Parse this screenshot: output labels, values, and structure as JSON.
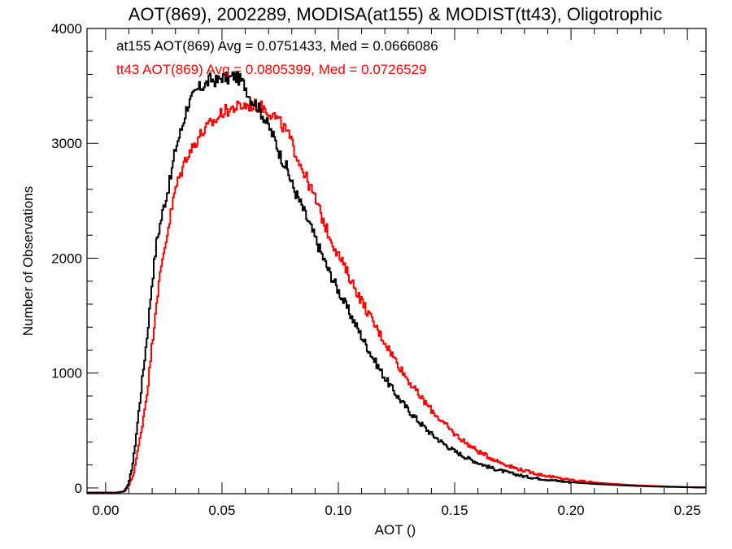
{
  "chart_data": {
    "type": "line",
    "title": "AOT(869), 2002289, MODISA(at155) & MODIST(tt43), Oligotrophic",
    "xlabel": "AOT ()",
    "ylabel": "Number of Observations",
    "xlim": [
      -0.008,
      0.258
    ],
    "ylim": [
      -50,
      4000
    ],
    "x_ticks": [
      0.0,
      0.05,
      0.1,
      0.15,
      0.2,
      0.25
    ],
    "x_tick_labels": [
      "0.00",
      "0.05",
      "0.10",
      "0.15",
      "0.20",
      "0.25"
    ],
    "y_ticks": [
      0,
      1000,
      2000,
      3000,
      4000
    ],
    "y_tick_labels": [
      "0",
      "1000",
      "2000",
      "3000",
      "4000"
    ],
    "grid": false,
    "step": "histogram",
    "annotations": [
      {
        "text": "at155 AOT(869) Avg = 0.0751433, Med = 0.0666086",
        "color": "#000000"
      },
      {
        "text": "tt43 AOT(869) Avg = 0.0805399, Med = 0.0726529",
        "color": "#ff0000"
      }
    ],
    "x": [
      -0.008,
      0.0,
      0.005,
      0.008,
      0.01,
      0.012,
      0.015,
      0.018,
      0.02,
      0.022,
      0.025,
      0.028,
      0.03,
      0.033,
      0.035,
      0.038,
      0.04,
      0.043,
      0.045,
      0.048,
      0.05,
      0.053,
      0.055,
      0.058,
      0.06,
      0.062,
      0.065,
      0.068,
      0.07,
      0.073,
      0.075,
      0.078,
      0.08,
      0.085,
      0.09,
      0.095,
      0.1,
      0.105,
      0.11,
      0.115,
      0.12,
      0.125,
      0.13,
      0.135,
      0.14,
      0.145,
      0.15,
      0.155,
      0.16,
      0.165,
      0.17,
      0.175,
      0.18,
      0.185,
      0.19,
      0.195,
      0.2,
      0.205,
      0.21,
      0.215,
      0.22,
      0.225,
      0.23,
      0.235,
      0.24,
      0.245,
      0.25,
      0.258
    ],
    "series": [
      {
        "name": "at155",
        "color": "#000000",
        "values": [
          -40,
          -40,
          -40,
          -30,
          40,
          250,
          800,
          1350,
          1800,
          2150,
          2450,
          2700,
          2950,
          3150,
          3320,
          3420,
          3480,
          3510,
          3560,
          3540,
          3580,
          3560,
          3590,
          3550,
          3500,
          3400,
          3330,
          3230,
          3150,
          3020,
          2900,
          2780,
          2650,
          2420,
          2180,
          1930,
          1720,
          1520,
          1320,
          1130,
          960,
          810,
          680,
          570,
          470,
          390,
          320,
          265,
          220,
          180,
          150,
          125,
          100,
          85,
          72,
          60,
          50,
          42,
          35,
          30,
          25,
          20,
          16,
          13,
          10,
          8,
          6,
          4
        ]
      },
      {
        "name": "tt43",
        "color": "#ff0000",
        "values": [
          -40,
          -40,
          -40,
          -30,
          20,
          120,
          450,
          850,
          1250,
          1650,
          2050,
          2380,
          2600,
          2780,
          2900,
          2980,
          3060,
          3120,
          3170,
          3210,
          3270,
          3290,
          3310,
          3320,
          3330,
          3330,
          3330,
          3310,
          3280,
          3230,
          3180,
          3100,
          3000,
          2760,
          2520,
          2250,
          2030,
          1830,
          1630,
          1440,
          1270,
          1100,
          940,
          800,
          680,
          570,
          470,
          390,
          320,
          265,
          220,
          180,
          150,
          125,
          103,
          85,
          70,
          58,
          48,
          40,
          33,
          27,
          22,
          18,
          14,
          11,
          8,
          5
        ]
      }
    ]
  }
}
